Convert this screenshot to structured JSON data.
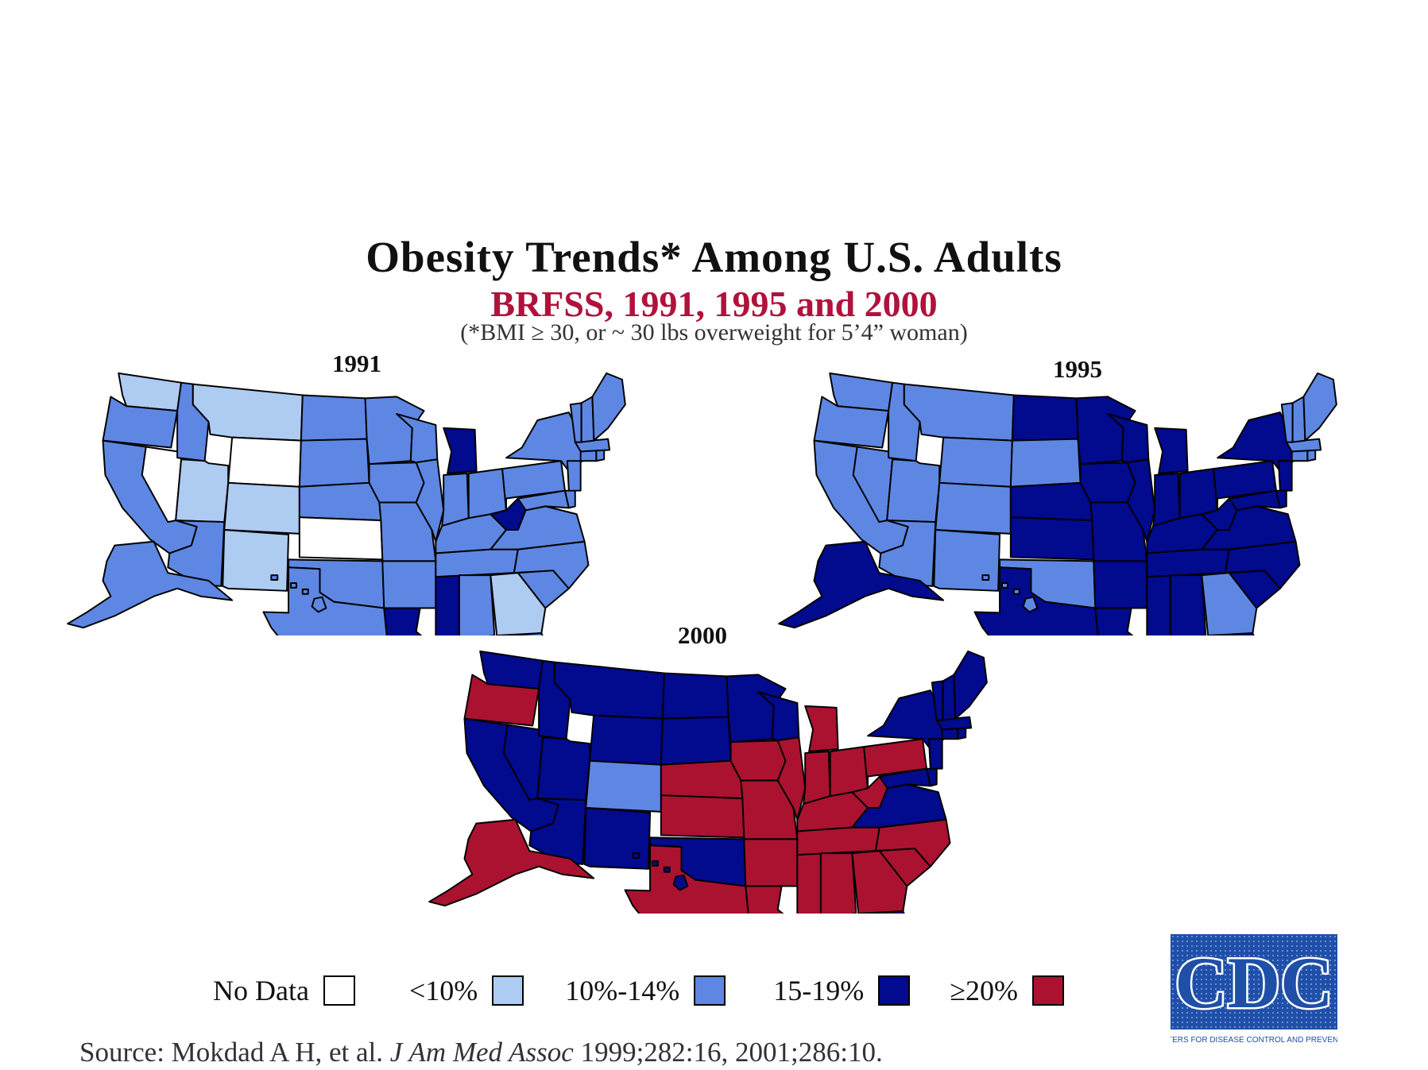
{
  "title": "Obesity Trends* Among U.S. Adults",
  "subtitle": "BRFSS, 1991, 1995 and 2000",
  "note": "(*BMI ≥ 30, or ~ 30 lbs overweight for 5’4” woman)",
  "colors": {
    "no_data": "#ffffff",
    "lt10": "#aecbf2",
    "p10_14": "#5d87e2",
    "p15_19": "#020a8e",
    "ge20": "#aa1230",
    "border": "#000000"
  },
  "legend": [
    {
      "label": "No Data",
      "color_key": "no_data"
    },
    {
      "label": "<10%",
      "color_key": "lt10"
    },
    {
      "label": "10%-14%",
      "color_key": "p10_14"
    },
    {
      "label": "15-19%",
      "color_key": "p15_19"
    },
    {
      "label": "≥20%",
      "color_key": "ge20"
    }
  ],
  "maps": [
    {
      "year": "1991",
      "default": "p10_14",
      "states": {
        "NV": "no_data",
        "WY": "no_data",
        "KS": "no_data",
        "WA": "lt10",
        "MT": "lt10",
        "UT": "lt10",
        "CO": "lt10",
        "NM": "lt10",
        "GA": "lt10",
        "MI": "p15_19",
        "WV": "p15_19",
        "LA": "p15_19",
        "MS": "p15_19"
      }
    },
    {
      "year": "1995",
      "default": "p15_19",
      "states": {
        "WA": "p10_14",
        "OR": "p10_14",
        "CA": "p10_14",
        "NV": "p10_14",
        "ID": "p10_14",
        "MT": "p10_14",
        "WY": "p10_14",
        "UT": "p10_14",
        "CO": "p10_14",
        "AZ": "p10_14",
        "NM": "p10_14",
        "SD": "p10_14",
        "OK": "p10_14",
        "GA": "p10_14",
        "HI": "p10_14",
        "ME": "p10_14",
        "VT": "p10_14",
        "NH": "p10_14",
        "MA": "p10_14",
        "CT": "p10_14",
        "RI": "p10_14"
      }
    },
    {
      "year": "2000",
      "default": "p15_19",
      "states": {
        "OR": "ge20",
        "AK": "ge20",
        "NE": "ge20",
        "KS": "ge20",
        "TX": "ge20",
        "MO": "ge20",
        "IA": "ge20",
        "IL": "ge20",
        "IN": "ge20",
        "OH": "ge20",
        "MI": "ge20",
        "KY": "ge20",
        "TN": "ge20",
        "AR": "ge20",
        "LA": "ge20",
        "MS": "ge20",
        "AL": "ge20",
        "GA": "ge20",
        "SC": "ge20",
        "NC": "ge20",
        "WV": "ge20",
        "PA": "ge20",
        "CO": "p10_14"
      }
    }
  ],
  "source": {
    "prefix": "Source: Mokdad A H, et al. ",
    "journal": "J Am Med Assoc",
    "suffix": " 1999;282:16, 2001;286:10."
  },
  "logo": {
    "text": "CDC",
    "caption": "CENTERS FOR DISEASE CONTROL AND PREVENTION"
  }
}
